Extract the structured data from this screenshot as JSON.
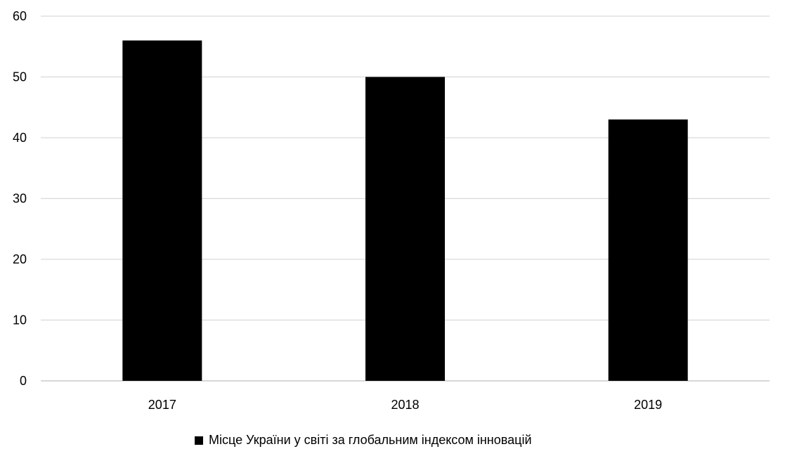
{
  "chart_data": {
    "type": "bar",
    "categories": [
      "2017",
      "2018",
      "2019"
    ],
    "series": [
      {
        "name": "Місце України у світі за глобальним індексом інновацій",
        "values": [
          56,
          50,
          43
        ],
        "color": "#000000"
      }
    ],
    "ylim": [
      0,
      60
    ],
    "yticks": [
      0,
      10,
      20,
      30,
      40,
      50,
      60
    ],
    "grid": true,
    "legend": "bottom"
  }
}
